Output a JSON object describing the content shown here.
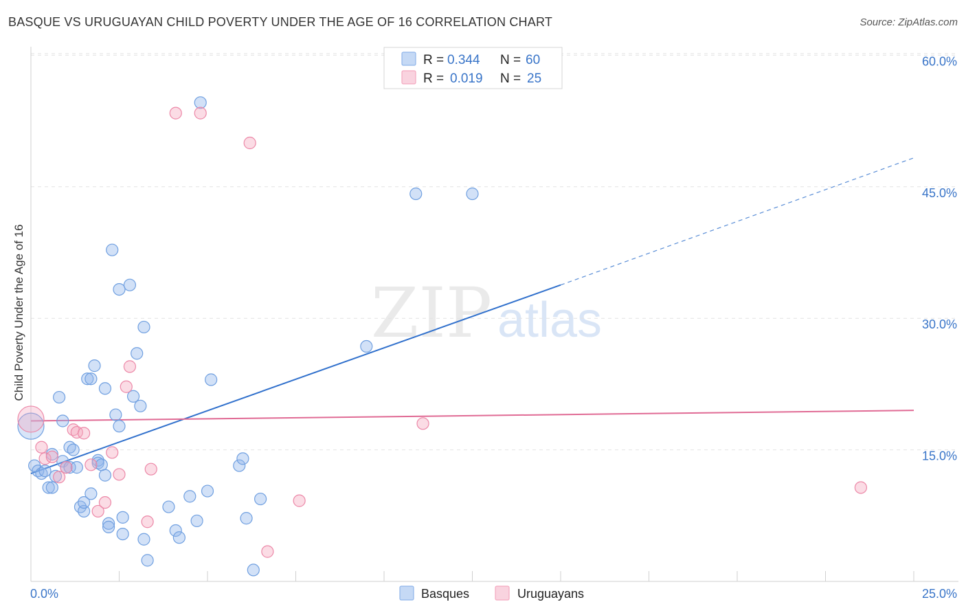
{
  "header": {
    "title": "BASQUE VS URUGUAYAN CHILD POVERTY UNDER THE AGE OF 16 CORRELATION CHART",
    "source": "Source: ZipAtlas.com"
  },
  "watermark": {
    "zip": "ZIP",
    "atlas": "atlas"
  },
  "chart_data": {
    "type": "scatter",
    "title": "BASQUE VS URUGUAYAN CHILD POVERTY UNDER THE AGE OF 16 CORRELATION CHART",
    "xlabel": "",
    "ylabel": "Child Poverty Under the Age of 16",
    "xlim": [
      0,
      25
    ],
    "ylim": [
      0,
      62
    ],
    "x_tick_labels": [
      {
        "value": 0,
        "label": "0.0%"
      },
      {
        "value": 25,
        "label": "25.0%"
      }
    ],
    "y_ticks": [
      {
        "value": 15,
        "label": "15.0%"
      },
      {
        "value": 30,
        "label": "30.0%"
      },
      {
        "value": 45,
        "label": "45.0%"
      },
      {
        "value": 60,
        "label": "60.0%"
      }
    ],
    "x_minor_ticks": [
      2.5,
      5,
      7.5,
      10,
      12.5,
      15,
      17.5,
      20,
      22.5,
      25
    ],
    "legend": [
      {
        "name": "Basques",
        "r_label": "R =",
        "r": "0.344",
        "n_label": "N =",
        "n": "60",
        "color": "#8fb5ea"
      },
      {
        "name": "Uruguayans",
        "r_label": "R =",
        "r": "0.019",
        "n_label": "N =",
        "n": "25",
        "color": "#f4a7bf"
      }
    ],
    "series": [
      {
        "name": "Basques",
        "color": "#8fb5ea",
        "stroke": "#6f9fe0",
        "trend": {
          "x0": 0,
          "y0": 12.3,
          "x1": 15,
          "y1": 33.8,
          "x_ext": 25,
          "y_ext": 48.3,
          "color": "#3070cc"
        },
        "points": [
          [
            0.1,
            13.2
          ],
          [
            0.2,
            12.6
          ],
          [
            0.3,
            12.3
          ],
          [
            0.4,
            12.6
          ],
          [
            0.5,
            10.7
          ],
          [
            0.6,
            14.5
          ],
          [
            0.6,
            10.7
          ],
          [
            0.7,
            12.0
          ],
          [
            0.8,
            21.0
          ],
          [
            0.9,
            13.7
          ],
          [
            0.9,
            18.3
          ],
          [
            1.0,
            13.0
          ],
          [
            1.1,
            15.3
          ],
          [
            1.1,
            13.0
          ],
          [
            1.2,
            15.0
          ],
          [
            1.3,
            13.0
          ],
          [
            1.4,
            8.5
          ],
          [
            1.5,
            8.0
          ],
          [
            1.5,
            9.0
          ],
          [
            1.6,
            23.1
          ],
          [
            1.7,
            23.1
          ],
          [
            1.7,
            10.0
          ],
          [
            1.8,
            24.6
          ],
          [
            1.9,
            13.8
          ],
          [
            1.9,
            13.5
          ],
          [
            2.0,
            13.3
          ],
          [
            2.1,
            22.0
          ],
          [
            2.1,
            12.1
          ],
          [
            2.2,
            6.6
          ],
          [
            2.2,
            6.2
          ],
          [
            2.3,
            37.8
          ],
          [
            2.4,
            19.0
          ],
          [
            2.5,
            33.3
          ],
          [
            2.5,
            17.7
          ],
          [
            2.6,
            7.3
          ],
          [
            2.6,
            5.4
          ],
          [
            2.8,
            33.8
          ],
          [
            2.9,
            21.1
          ],
          [
            3.0,
            26.0
          ],
          [
            3.1,
            20.0
          ],
          [
            3.2,
            29.0
          ],
          [
            3.2,
            4.8
          ],
          [
            3.3,
            2.4
          ],
          [
            3.9,
            8.5
          ],
          [
            4.1,
            5.8
          ],
          [
            4.2,
            5.0
          ],
          [
            4.5,
            9.7
          ],
          [
            4.7,
            6.9
          ],
          [
            4.8,
            54.6
          ],
          [
            5.0,
            10.3
          ],
          [
            5.1,
            23.0
          ],
          [
            5.9,
            13.2
          ],
          [
            6.0,
            14.0
          ],
          [
            6.1,
            7.2
          ],
          [
            6.3,
            1.3
          ],
          [
            6.5,
            9.4
          ],
          [
            9.5,
            26.8
          ],
          [
            10.9,
            44.2
          ],
          [
            12.5,
            44.2
          ],
          [
            0.0,
            17.7
          ]
        ]
      },
      {
        "name": "Uruguayans",
        "color": "#f4a7bf",
        "stroke": "#ec87a7",
        "trend": {
          "x0": 0,
          "y0": 18.3,
          "x1": 25,
          "y1": 19.5,
          "color": "#e06a94"
        },
        "points": [
          [
            0.0,
            18.5
          ],
          [
            0.3,
            15.3
          ],
          [
            0.4,
            14.0
          ],
          [
            0.6,
            14.2
          ],
          [
            0.8,
            11.9
          ],
          [
            1.0,
            13.0
          ],
          [
            1.2,
            17.3
          ],
          [
            1.3,
            17.0
          ],
          [
            1.5,
            16.9
          ],
          [
            1.7,
            13.3
          ],
          [
            1.9,
            8.0
          ],
          [
            2.1,
            9.0
          ],
          [
            2.3,
            14.7
          ],
          [
            2.5,
            12.2
          ],
          [
            2.7,
            22.2
          ],
          [
            2.8,
            24.5
          ],
          [
            3.3,
            6.8
          ],
          [
            3.4,
            12.8
          ],
          [
            4.1,
            53.4
          ],
          [
            4.8,
            53.4
          ],
          [
            6.2,
            50.0
          ],
          [
            6.7,
            3.4
          ],
          [
            7.6,
            9.2
          ],
          [
            11.1,
            18.0
          ],
          [
            23.5,
            10.7
          ]
        ]
      }
    ]
  }
}
